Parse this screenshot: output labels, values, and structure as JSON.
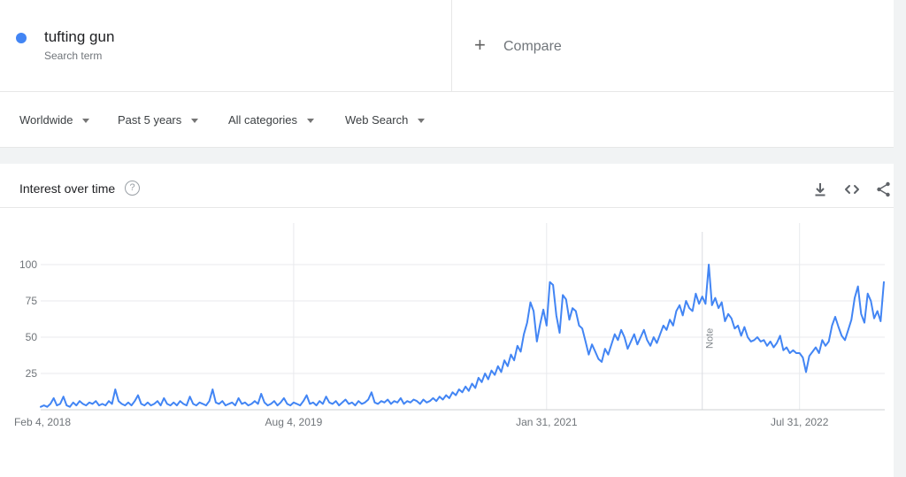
{
  "page": {
    "background": "#f1f3f4",
    "card_background": "#ffffff",
    "accent_color": "#4285f4"
  },
  "header": {
    "term": {
      "label": "tufting gun",
      "sublabel": "Search term",
      "dot_color": "#4285f4"
    },
    "compare": {
      "plus": "+",
      "label": "Compare"
    }
  },
  "filters": [
    {
      "label": "Worldwide"
    },
    {
      "label": "Past 5 years"
    },
    {
      "label": "All categories"
    },
    {
      "label": "Web Search"
    }
  ],
  "chart_card": {
    "title": "Interest over time",
    "help_glyph": "?",
    "icons": [
      "download-icon",
      "embed-icon",
      "share-icon"
    ]
  },
  "chart_data": {
    "type": "line",
    "title": "Interest over time",
    "frequency": "weekly",
    "x_start_label": "Feb 4, 2018",
    "x_ticks": [
      "Feb 4, 2018",
      "Aug 4, 2019",
      "Jan 31, 2021",
      "Jul 31, 2022"
    ],
    "x_tick_weeks": [
      0,
      78,
      156,
      234
    ],
    "y_ticks": [
      25,
      50,
      75,
      100
    ],
    "ylim": [
      0,
      100
    ],
    "grid": true,
    "note_marker": {
      "label": "Note",
      "week_index": 204
    },
    "series": [
      {
        "name": "tufting gun",
        "color": "#4285f4",
        "values": [
          2,
          3,
          2,
          4,
          8,
          3,
          4,
          9,
          3,
          2,
          5,
          3,
          6,
          4,
          3,
          5,
          4,
          6,
          3,
          4,
          3,
          6,
          4,
          14,
          6,
          4,
          3,
          5,
          3,
          6,
          10,
          4,
          3,
          5,
          3,
          4,
          6,
          3,
          8,
          4,
          3,
          5,
          3,
          6,
          4,
          3,
          9,
          4,
          3,
          5,
          4,
          3,
          6,
          14,
          5,
          4,
          6,
          3,
          4,
          5,
          3,
          8,
          4,
          5,
          3,
          4,
          6,
          4,
          11,
          5,
          3,
          4,
          6,
          3,
          5,
          8,
          4,
          3,
          5,
          4,
          3,
          6,
          10,
          4,
          5,
          3,
          6,
          4,
          9,
          5,
          4,
          6,
          3,
          5,
          7,
          4,
          5,
          3,
          6,
          4,
          5,
          7,
          12,
          5,
          4,
          6,
          5,
          7,
          4,
          6,
          5,
          8,
          4,
          6,
          5,
          7,
          6,
          4,
          7,
          5,
          6,
          8,
          6,
          9,
          7,
          10,
          8,
          12,
          10,
          14,
          12,
          16,
          13,
          18,
          15,
          22,
          19,
          25,
          21,
          27,
          24,
          30,
          26,
          34,
          30,
          38,
          34,
          44,
          40,
          52,
          60,
          74,
          68,
          47,
          59,
          69,
          58,
          88,
          86,
          65,
          53,
          79,
          76,
          62,
          70,
          68,
          58,
          56,
          47,
          38,
          45,
          40,
          35,
          33,
          42,
          38,
          45,
          52,
          48,
          55,
          50,
          42,
          47,
          52,
          45,
          50,
          55,
          48,
          44,
          50,
          46,
          52,
          58,
          55,
          62,
          58,
          68,
          72,
          65,
          75,
          70,
          68,
          80,
          73,
          78,
          73,
          100,
          72,
          77,
          70,
          74,
          61,
          66,
          63,
          56,
          58,
          51,
          57,
          50,
          47,
          48,
          50,
          47,
          48,
          44,
          47,
          43,
          46,
          51,
          41,
          43,
          39,
          41,
          39,
          39,
          36,
          26,
          37,
          40,
          43,
          39,
          48,
          44,
          47,
          58,
          64,
          57,
          51,
          48,
          55,
          62,
          77,
          85,
          66,
          60,
          80,
          75,
          63,
          68,
          61,
          88
        ]
      }
    ]
  }
}
